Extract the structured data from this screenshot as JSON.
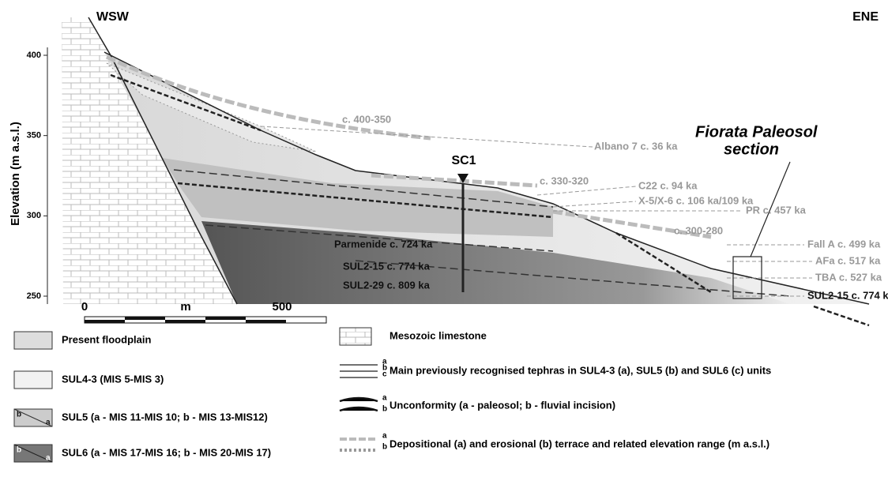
{
  "header": {
    "left": "WSW",
    "right": "ENE"
  },
  "elevation_axis": {
    "label": "Elevation (m a.s.l.)",
    "ticks": [
      400,
      350,
      300,
      250
    ]
  },
  "scale_bar": {
    "start": "0",
    "unit": "m",
    "end": "500"
  },
  "borehole": "SC1",
  "section_label": [
    "Fiorata Paleosol",
    "section"
  ],
  "annotations": [
    "c. 400-350",
    "Albano 7 c. 36 ka",
    "c. 330-320",
    "C22 c. 94 ka",
    "X-5/X-6 c. 106 ka/109 ka",
    "PR c. 457 ka",
    "c. 300-280",
    "Fall A c. 499 ka",
    "AFa c. 517 ka",
    "TBA c. 527 ka",
    "SUL2-15 c. 774 ka",
    "Parmenide c. 724 ka",
    "SUL2-15 c. 774 ka",
    "SUL2-29 c. 809 ka"
  ],
  "legend_left": [
    {
      "label": "Present floodplain"
    },
    {
      "label": "SUL4-3 (MIS 5-MIS 3)"
    },
    {
      "label": "SUL5 (a - MIS 11-MIS 10; b - MIS 13-MIS12)",
      "marks": [
        "b",
        "a"
      ]
    },
    {
      "label": "SUL6 (a - MIS 17-MIS 16; b - MIS 20-MIS 17)",
      "marks": [
        "b",
        "a"
      ]
    }
  ],
  "legend_right": [
    {
      "label": "Mesozoic limestone"
    },
    {
      "label": "Main previously recognised tephras  in SUL4-3 (a), SUL5 (b) and SUL6 (c) units",
      "marks": [
        "a",
        "b",
        "c"
      ]
    },
    {
      "label": "Unconformity (a - paleosol; b - fluvial incision)",
      "marks": [
        "a",
        "b"
      ]
    },
    {
      "label": "Depositional (a) and erosional (b) terrace and related elevation range (m a.s.l.)",
      "marks": [
        "a",
        "b"
      ]
    }
  ]
}
